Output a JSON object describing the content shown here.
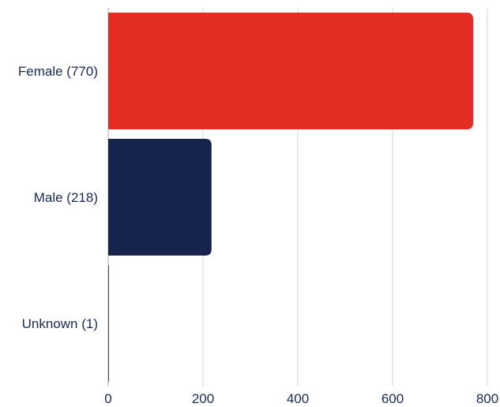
{
  "chart_data": {
    "type": "bar",
    "orientation": "horizontal",
    "categories": [
      "Female (770)",
      "Male (218)",
      "Unknown (1)"
    ],
    "values": [
      770,
      218,
      1
    ],
    "bar_colors": [
      "#e32d22",
      "#16244d",
      "#16244d"
    ],
    "xlim": [
      0,
      800
    ],
    "xticks": [
      0,
      200,
      400,
      600,
      800
    ],
    "grid": true,
    "title": "",
    "xlabel": "",
    "ylabel": ""
  }
}
